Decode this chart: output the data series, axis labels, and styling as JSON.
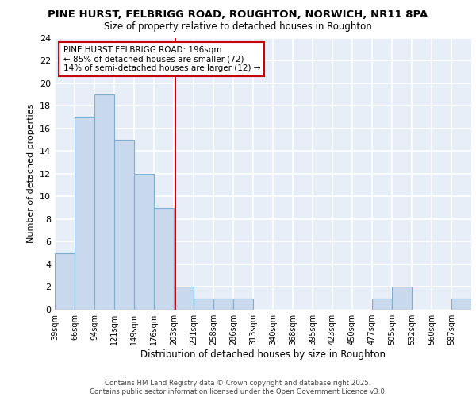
{
  "title_line1": "PINE HURST, FELBRIGG ROAD, ROUGHTON, NORWICH, NR11 8PA",
  "title_line2": "Size of property relative to detached houses in Roughton",
  "xlabel": "Distribution of detached houses by size in Roughton",
  "ylabel": "Number of detached properties",
  "footer_line1": "Contains HM Land Registry data © Crown copyright and database right 2025.",
  "footer_line2": "Contains public sector information licensed under the Open Government Licence v3.0.",
  "bins": [
    "39sqm",
    "66sqm",
    "94sqm",
    "121sqm",
    "149sqm",
    "176sqm",
    "203sqm",
    "231sqm",
    "258sqm",
    "286sqm",
    "313sqm",
    "340sqm",
    "368sqm",
    "395sqm",
    "423sqm",
    "450sqm",
    "477sqm",
    "505sqm",
    "532sqm",
    "560sqm",
    "587sqm"
  ],
  "values": [
    5,
    17,
    19,
    15,
    12,
    9,
    2,
    1,
    1,
    1,
    0,
    0,
    0,
    0,
    0,
    0,
    1,
    2,
    0,
    0,
    1
  ],
  "bar_color": "#c8d8ed",
  "bar_edge_color": "#7aaed4",
  "vline_color": "#cc0000",
  "annotation_box_color": "#cc0000",
  "annotation_text_line1": "PINE HURST FELBRIGG ROAD: 196sqm",
  "annotation_text_line2": "← 85% of detached houses are smaller (72)",
  "annotation_text_line3": "14% of semi-detached houses are larger (12) →",
  "ylim": [
    0,
    24
  ],
  "bin_width": 27,
  "background_color": "#e8eef8",
  "grid_color": "#ffffff"
}
